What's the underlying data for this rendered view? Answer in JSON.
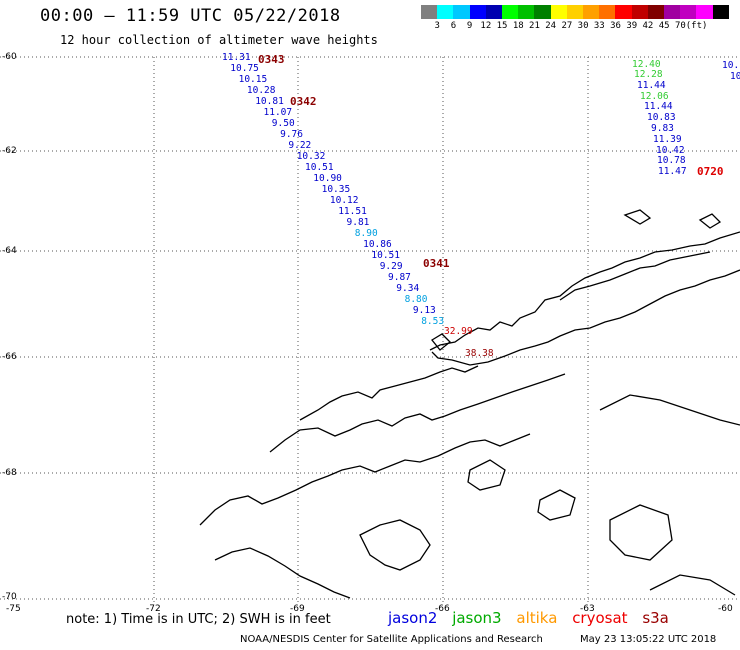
{
  "header": {
    "title": "00:00 — 11:59 UTC 05/22/2018",
    "subtitle": "12 hour collection of altimeter wave heights"
  },
  "colorbar": {
    "colors": [
      "#808080",
      "#00ffff",
      "#00c8ff",
      "#0000ff",
      "#0000b0",
      "#00ff00",
      "#00c000",
      "#008000",
      "#ffff00",
      "#ffd000",
      "#ffa000",
      "#ff7000",
      "#ff0000",
      "#c00000",
      "#800000",
      "#a000a0",
      "#c000c0",
      "#ff00ff",
      "#000000"
    ],
    "labels": [
      "3",
      "6",
      "9",
      "12",
      "15",
      "18",
      "21",
      "24",
      "27",
      "30",
      "33",
      "36",
      "39",
      "42",
      "45",
      "70",
      "(ft)"
    ]
  },
  "axes": {
    "lat_labels": [
      "-60",
      "-62",
      "-64",
      "-66",
      "-68",
      "-70"
    ],
    "lon_labels": [
      "-75",
      "-72",
      "-69",
      "-66",
      "-63",
      "-60"
    ]
  },
  "track1": {
    "passes": [
      "0343",
      "0342",
      "0341"
    ],
    "values": [
      "11.31",
      "10.75",
      "10.15",
      "10.28",
      "10.81",
      "11.07",
      "9.50",
      "9.76",
      "9.22",
      "10.32",
      "10.51",
      "10.90",
      "10.35",
      "10.12",
      "11.51",
      "9.81",
      "8.90",
      "10.86",
      "10.51",
      "9.29",
      "9.87",
      "9.34",
      "8.80",
      "9.13",
      "8.53",
      "32.99",
      "38.38"
    ],
    "colors": [
      "#0000cc",
      "#0000cc",
      "#0000cc",
      "#0000cc",
      "#0000cc",
      "#0000cc",
      "#0000cc",
      "#0000cc",
      "#0000cc",
      "#0000cc",
      "#0000cc",
      "#0000cc",
      "#0000cc",
      "#0000cc",
      "#0000cc",
      "#0000cc",
      "#00a0e0",
      "#0000cc",
      "#0000cc",
      "#0000cc",
      "#0000cc",
      "#0000cc",
      "#00a0e0",
      "#0000cc",
      "#00a0e0",
      "#cc0000",
      "#990000"
    ]
  },
  "track2": {
    "pass": "0720",
    "values": [
      "12.40",
      "12.28",
      "11.44",
      "12.06",
      "11.44",
      "10.83",
      "9.83",
      "11.39",
      "10.42",
      "10.78",
      "11.47"
    ],
    "colors": [
      "#33cc33",
      "#33cc33",
      "#0000cc",
      "#33cc33",
      "#0000cc",
      "#0000cc",
      "#0000cc",
      "#0000cc",
      "#0000cc",
      "#0000cc",
      "#0000cc"
    ]
  },
  "track3": {
    "values": [
      "10.",
      "10"
    ]
  },
  "note": "note: 1) Time is in UTC; 2) SWH is in feet",
  "legend": [
    {
      "name": "jason2",
      "color": "#0000dd"
    },
    {
      "name": "jason3",
      "color": "#00aa00"
    },
    {
      "name": "altika",
      "color": "#ff9900"
    },
    {
      "name": "cryosat",
      "color": "#ee0000"
    },
    {
      "name": "s3a",
      "color": "#990000"
    }
  ],
  "footer": {
    "left": "NOAA/NESDIS Center for Satellite Applications and Research",
    "right": "May 23 13:05:22 UTC 2018"
  }
}
